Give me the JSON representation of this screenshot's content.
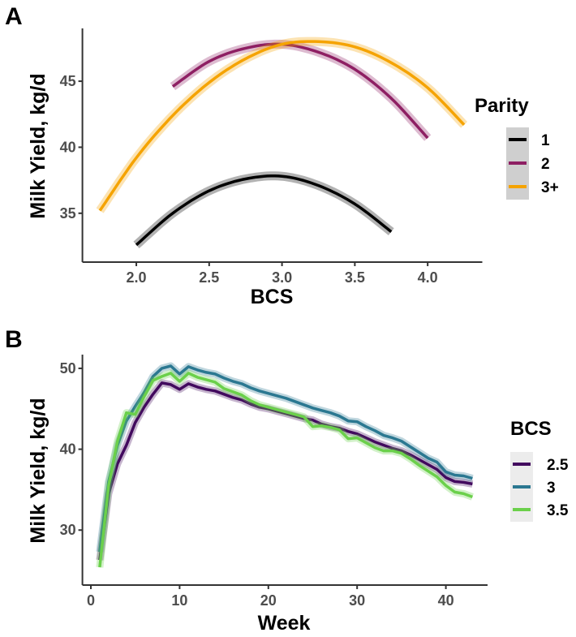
{
  "chart_data": [
    {
      "panel_label": "A",
      "type": "line",
      "xlabel": "BCS",
      "ylabel": "Milk Yield, kg/d",
      "xlim": [
        1.63,
        4.375
      ],
      "ylim": [
        31.3,
        49.0
      ],
      "xticks": [
        "2.0",
        "2.5",
        "3.0",
        "3.5",
        "4.0"
      ],
      "xtick_values": [
        2.0,
        2.5,
        3.0,
        3.5,
        4.0
      ],
      "yticks": [
        "35",
        "40",
        "45"
      ],
      "ytick_values": [
        35,
        40,
        45
      ],
      "grid": false,
      "confidence_ribbons": true,
      "legend": {
        "title": "Parity",
        "position": "right"
      },
      "series": [
        {
          "name": "1",
          "color": "#000000",
          "x": [
            2.0,
            2.25,
            2.5,
            2.75,
            3.0,
            3.25,
            3.5,
            3.75
          ],
          "y": [
            32.6,
            35.0,
            36.7,
            37.6,
            37.8,
            37.1,
            35.7,
            33.6
          ]
        },
        {
          "name": "2",
          "color": "#8e1f63",
          "x": [
            2.25,
            2.5,
            2.75,
            3.0,
            3.25,
            3.5,
            3.75,
            4.0
          ],
          "y": [
            44.6,
            46.5,
            47.5,
            47.8,
            47.2,
            45.9,
            43.7,
            40.7
          ]
        },
        {
          "name": "3+",
          "color": "#f5a300",
          "x": [
            1.75,
            2.0,
            2.25,
            2.5,
            2.75,
            3.0,
            3.25,
            3.5,
            3.75,
            4.0,
            4.25
          ],
          "y": [
            35.2,
            39.2,
            42.4,
            44.9,
            46.7,
            47.8,
            48.0,
            47.6,
            46.4,
            44.5,
            41.7
          ]
        }
      ]
    },
    {
      "panel_label": "B",
      "type": "line",
      "xlabel": "Week",
      "ylabel": "Milk Yield, kg/d",
      "xlim": [
        -0.95,
        44.7
      ],
      "ylim": [
        23.2,
        51.7
      ],
      "xticks": [
        "0",
        "10",
        "20",
        "30",
        "40"
      ],
      "xtick_values": [
        0,
        10,
        20,
        30,
        40
      ],
      "yticks": [
        "30",
        "40",
        "50"
      ],
      "ytick_values": [
        30,
        40,
        50
      ],
      "grid": false,
      "confidence_ribbons": true,
      "legend": {
        "title": "BCS",
        "position": "right"
      },
      "x": [
        1,
        2,
        3,
        4,
        5,
        6,
        7,
        8,
        9,
        10,
        11,
        12,
        13,
        14,
        15,
        16,
        17,
        18,
        19,
        20,
        21,
        22,
        23,
        24,
        25,
        26,
        27,
        28,
        29,
        30,
        31,
        32,
        33,
        34,
        35,
        36,
        37,
        38,
        39,
        40,
        41,
        42,
        43
      ],
      "series": [
        {
          "name": "2.5",
          "color": "#420a5e",
          "values": [
            26.3,
            34.5,
            38.2,
            40.5,
            43.3,
            45.2,
            46.8,
            48.2,
            48.0,
            47.4,
            48.1,
            47.7,
            47.4,
            47.2,
            46.8,
            46.4,
            46.1,
            45.6,
            45.2,
            45.0,
            44.7,
            44.4,
            44.1,
            43.8,
            43.6,
            43.1,
            42.8,
            42.6,
            42.2,
            41.9,
            41.4,
            40.9,
            40.5,
            40.1,
            39.8,
            39.3,
            38.7,
            38.1,
            37.5,
            36.5,
            36.0,
            35.9,
            35.7
          ]
        },
        {
          "name": "3",
          "color": "#2b7891",
          "values": [
            27.3,
            36.0,
            40.5,
            43.5,
            45.3,
            47.0,
            49.0,
            50.0,
            50.3,
            49.3,
            50.2,
            49.8,
            49.5,
            49.3,
            48.8,
            48.4,
            48.1,
            47.6,
            47.2,
            46.9,
            46.6,
            46.3,
            45.9,
            45.5,
            45.1,
            44.8,
            44.5,
            44.1,
            43.5,
            43.4,
            42.8,
            42.3,
            41.7,
            41.4,
            41.0,
            40.3,
            39.6,
            38.9,
            38.4,
            37.2,
            36.8,
            36.7,
            36.4
          ]
        },
        {
          "name": "3.5",
          "color": "#6bd04b",
          "values": [
            25.4,
            35.5,
            41.0,
            44.5,
            44.3,
            46.5,
            48.5,
            49.0,
            49.4,
            48.4,
            49.4,
            48.9,
            48.6,
            48.3,
            47.5,
            47.1,
            46.7,
            46.0,
            45.5,
            45.2,
            44.9,
            44.6,
            44.3,
            44.0,
            42.8,
            42.9,
            42.7,
            42.4,
            41.3,
            41.4,
            40.8,
            40.2,
            39.8,
            39.8,
            39.5,
            38.8,
            38.0,
            37.3,
            36.6,
            35.5,
            34.7,
            34.5,
            34.1
          ]
        }
      ]
    }
  ]
}
